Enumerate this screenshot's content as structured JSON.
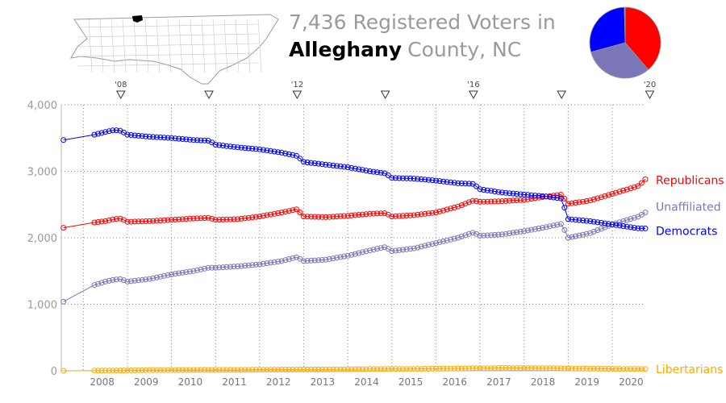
{
  "header": {
    "line1": "7,436 Registered Voters in",
    "county": "Alleghany",
    "line2": "County, NC"
  },
  "map": {
    "icon": "north-carolina-counties-map-icon",
    "highlight_color": "#000000"
  },
  "pie": {
    "colors": [
      "#ff0000",
      "#7b76b8",
      "#0000ff"
    ],
    "slices": [
      {
        "name": "Republicans",
        "value": 2880,
        "color": "#ff0000"
      },
      {
        "name": "Unaffiliated",
        "value": 2380,
        "color": "#7b76b8"
      },
      {
        "name": "Democrats",
        "value": 2150,
        "color": "#0000ff"
      },
      {
        "name": "Libertarians",
        "value": 26,
        "color": "#ffaa00"
      }
    ]
  },
  "chart_data": {
    "type": "line",
    "title": "",
    "xlabel": "",
    "ylabel": "",
    "ylim": [
      0,
      4000
    ],
    "xlim": [
      2007.5,
      2020.75
    ],
    "grid": true,
    "y_ticks": [
      "0",
      "1,000",
      "2,000",
      "3,000",
      "4,000"
    ],
    "y_tick_values": [
      0,
      1000,
      2000,
      3000,
      4000
    ],
    "x_ticks": [
      "2008",
      "2009",
      "2010",
      "2011",
      "2012",
      "2013",
      "2014",
      "2015",
      "2016",
      "2017",
      "2018",
      "2019",
      "2020"
    ],
    "x_tick_values": [
      2008,
      2009,
      2010,
      2011,
      2012,
      2013,
      2014,
      2015,
      2016,
      2017,
      2018,
      2019,
      2020
    ],
    "election_labels": [
      "'08",
      "",
      "'12",
      "",
      "'16",
      "",
      "'20"
    ],
    "election_values": [
      2008.85,
      2010.85,
      2012.85,
      2014.85,
      2016.85,
      2018.85,
      2020.85
    ],
    "series": [
      {
        "name": "Republicans",
        "color": "#ff0000",
        "points": [
          [
            2007.55,
            2150
          ],
          [
            2007.75,
            2190
          ],
          [
            2008.25,
            2230
          ],
          [
            2008.5,
            2250
          ],
          [
            2008.7,
            2280
          ],
          [
            2008.85,
            2290
          ],
          [
            2009.0,
            2240
          ],
          [
            2009.5,
            2250
          ],
          [
            2010.0,
            2270
          ],
          [
            2010.5,
            2290
          ],
          [
            2010.85,
            2300
          ],
          [
            2011.0,
            2270
          ],
          [
            2011.5,
            2280
          ],
          [
            2012.0,
            2320
          ],
          [
            2012.5,
            2380
          ],
          [
            2012.85,
            2430
          ],
          [
            2013.0,
            2320
          ],
          [
            2013.5,
            2310
          ],
          [
            2014.0,
            2330
          ],
          [
            2014.5,
            2360
          ],
          [
            2014.85,
            2370
          ],
          [
            2015.0,
            2320
          ],
          [
            2015.5,
            2340
          ],
          [
            2016.0,
            2380
          ],
          [
            2016.5,
            2470
          ],
          [
            2016.85,
            2560
          ],
          [
            2017.0,
            2540
          ],
          [
            2017.5,
            2550
          ],
          [
            2018.0,
            2570
          ],
          [
            2018.5,
            2620
          ],
          [
            2018.85,
            2650
          ],
          [
            2019.0,
            2510
          ],
          [
            2019.5,
            2560
          ],
          [
            2020.0,
            2660
          ],
          [
            2020.4,
            2740
          ],
          [
            2020.6,
            2780
          ],
          [
            2020.75,
            2880
          ]
        ]
      },
      {
        "name": "Unaffiliated",
        "color": "#7b76b8",
        "points": [
          [
            2007.55,
            1040
          ],
          [
            2007.75,
            1110
          ],
          [
            2008.25,
            1290
          ],
          [
            2008.5,
            1340
          ],
          [
            2008.7,
            1370
          ],
          [
            2008.85,
            1380
          ],
          [
            2009.0,
            1340
          ],
          [
            2009.5,
            1380
          ],
          [
            2010.0,
            1450
          ],
          [
            2010.5,
            1500
          ],
          [
            2010.85,
            1550
          ],
          [
            2011.0,
            1550
          ],
          [
            2011.5,
            1570
          ],
          [
            2012.0,
            1600
          ],
          [
            2012.5,
            1650
          ],
          [
            2012.85,
            1710
          ],
          [
            2013.0,
            1650
          ],
          [
            2013.5,
            1670
          ],
          [
            2014.0,
            1730
          ],
          [
            2014.5,
            1810
          ],
          [
            2014.85,
            1860
          ],
          [
            2015.0,
            1800
          ],
          [
            2015.5,
            1840
          ],
          [
            2016.0,
            1920
          ],
          [
            2016.5,
            2000
          ],
          [
            2016.85,
            2080
          ],
          [
            2017.0,
            2030
          ],
          [
            2017.5,
            2050
          ],
          [
            2018.0,
            2100
          ],
          [
            2018.5,
            2160
          ],
          [
            2018.85,
            2210
          ],
          [
            2019.0,
            2000
          ],
          [
            2019.5,
            2070
          ],
          [
            2020.0,
            2200
          ],
          [
            2020.4,
            2280
          ],
          [
            2020.6,
            2320
          ],
          [
            2020.75,
            2380
          ]
        ]
      },
      {
        "name": "Democrats",
        "color": "#0000ff",
        "points": [
          [
            2007.55,
            3470
          ],
          [
            2007.75,
            3510
          ],
          [
            2008.25,
            3550
          ],
          [
            2008.5,
            3590
          ],
          [
            2008.7,
            3620
          ],
          [
            2008.85,
            3610
          ],
          [
            2009.0,
            3550
          ],
          [
            2009.5,
            3520
          ],
          [
            2010.0,
            3500
          ],
          [
            2010.5,
            3470
          ],
          [
            2010.85,
            3460
          ],
          [
            2011.0,
            3400
          ],
          [
            2011.5,
            3360
          ],
          [
            2012.0,
            3330
          ],
          [
            2012.5,
            3280
          ],
          [
            2012.85,
            3230
          ],
          [
            2013.0,
            3140
          ],
          [
            2013.5,
            3100
          ],
          [
            2014.0,
            3060
          ],
          [
            2014.5,
            3000
          ],
          [
            2014.85,
            2970
          ],
          [
            2015.0,
            2900
          ],
          [
            2015.5,
            2890
          ],
          [
            2016.0,
            2860
          ],
          [
            2016.5,
            2820
          ],
          [
            2016.85,
            2810
          ],
          [
            2017.0,
            2730
          ],
          [
            2017.5,
            2680
          ],
          [
            2018.0,
            2650
          ],
          [
            2018.5,
            2620
          ],
          [
            2018.85,
            2590
          ],
          [
            2019.0,
            2280
          ],
          [
            2019.5,
            2250
          ],
          [
            2020.0,
            2200
          ],
          [
            2020.4,
            2160
          ],
          [
            2020.6,
            2140
          ],
          [
            2020.75,
            2140
          ]
        ]
      },
      {
        "name": "Libertarians",
        "color": "#ffaa00",
        "points": [
          [
            2007.55,
            0
          ],
          [
            2008.5,
            3
          ],
          [
            2009.5,
            8
          ],
          [
            2010.5,
            12
          ],
          [
            2011.5,
            12
          ],
          [
            2012.5,
            18
          ],
          [
            2013.5,
            20
          ],
          [
            2014.5,
            25
          ],
          [
            2015.5,
            28
          ],
          [
            2016.5,
            35
          ],
          [
            2017.5,
            42
          ],
          [
            2018.5,
            40
          ],
          [
            2019.5,
            32
          ],
          [
            2020.75,
            26
          ]
        ]
      }
    ]
  }
}
